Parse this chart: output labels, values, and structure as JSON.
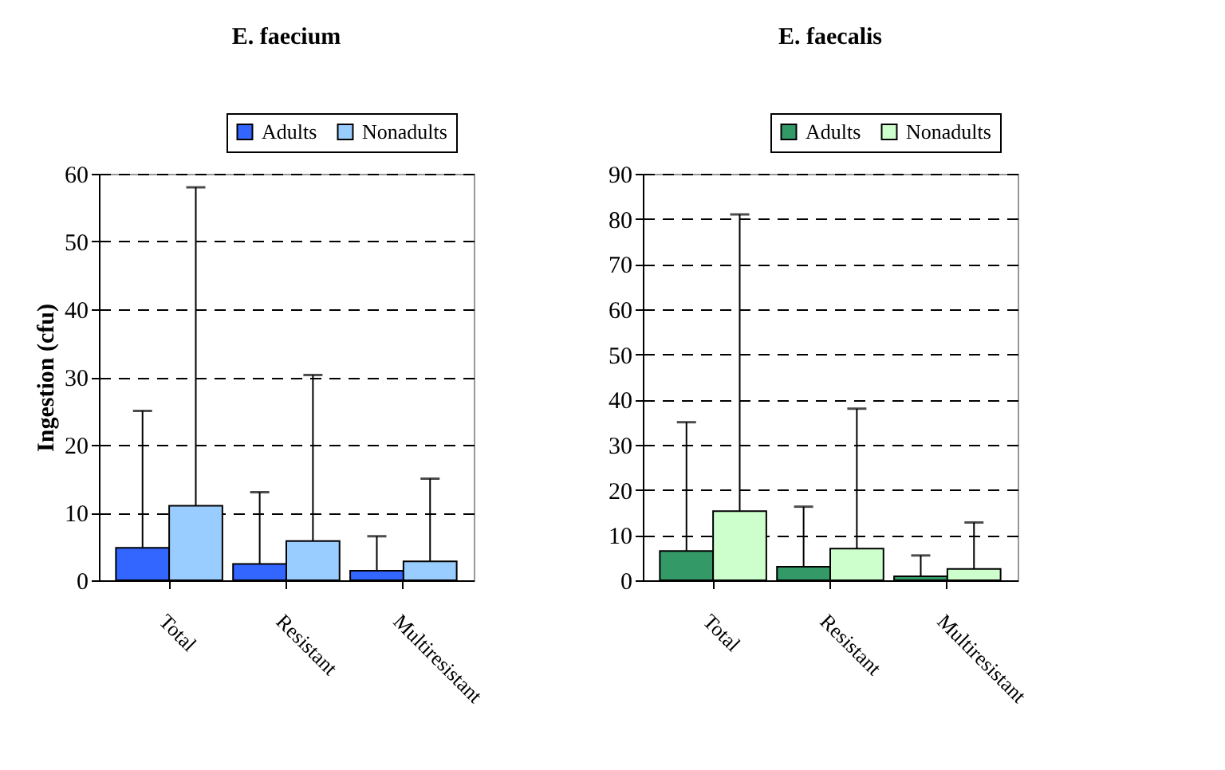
{
  "chart_data": [
    {
      "type": "bar",
      "title": "E. faecium",
      "ylabel": "Ingestion (cfu)",
      "categories": [
        "Total",
        "Resistant",
        "Multiresistant"
      ],
      "series": [
        {
          "name": "Adults",
          "color": "#3366ff",
          "values": [
            4.8,
            2.4,
            1.4
          ],
          "errors": [
            [
              4.8,
              25
            ],
            [
              2.4,
              13
            ],
            [
              1.4,
              6.5
            ]
          ]
        },
        {
          "name": "Nonadults",
          "color": "#99ccff",
          "values": [
            11,
            5.8,
            2.8
          ],
          "errors": [
            [
              11,
              58
            ],
            [
              5.8,
              30.3
            ],
            [
              2.8,
              15
            ]
          ]
        }
      ],
      "ylim": [
        0,
        60
      ],
      "yticks": [
        0,
        10,
        20,
        30,
        40,
        50,
        60
      ],
      "grid": "y",
      "legend": "top right"
    },
    {
      "type": "bar",
      "title": "E. faecalis",
      "categories": [
        "Total",
        "Resistant",
        "Multiresistant"
      ],
      "series": [
        {
          "name": "Adults",
          "color": "#339966",
          "values": [
            6.5,
            3,
            0.9
          ],
          "errors": [
            [
              6.5,
              35
            ],
            [
              3,
              16.3
            ],
            [
              0.9,
              5.5
            ]
          ]
        },
        {
          "name": "Nonadults",
          "color": "#ccffcc",
          "values": [
            15.3,
            7,
            2.5
          ],
          "errors": [
            [
              15.3,
              81
            ],
            [
              7,
              38
            ],
            [
              2.5,
              12.8
            ]
          ]
        }
      ],
      "ylim": [
        0,
        90
      ],
      "yticks": [
        0,
        10,
        20,
        30,
        40,
        50,
        60,
        70,
        80,
        90
      ],
      "grid": "y",
      "legend": "top right"
    }
  ]
}
